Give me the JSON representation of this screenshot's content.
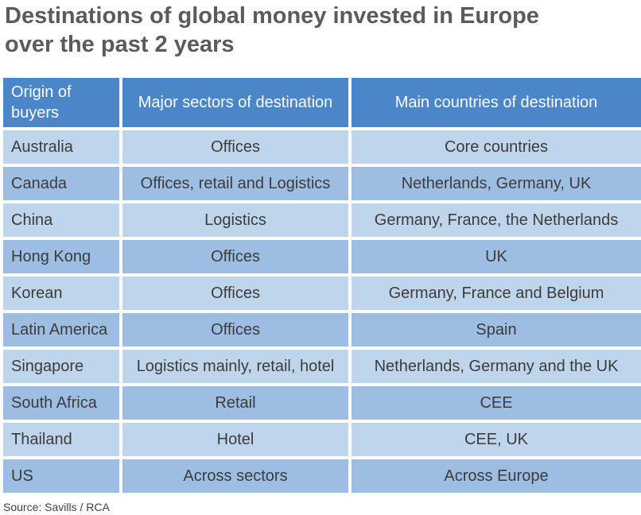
{
  "chart_data": {
    "type": "table",
    "title_lines": [
      "Destinations of global money invested in Europe",
      "over the past 2 years"
    ],
    "columns": [
      "Origin of buyers",
      "Major sectors of destination",
      "Main countries of destination"
    ],
    "rows": [
      [
        "Australia",
        "Offices",
        "Core countries"
      ],
      [
        "Canada",
        "Offices, retail and Logistics",
        "Netherlands, Germany, UK"
      ],
      [
        "China",
        "Logistics",
        "Germany, France, the Netherlands"
      ],
      [
        "Hong Kong",
        "Offices",
        "UK"
      ],
      [
        "Korean",
        "Offices",
        "Germany, France and Belgium"
      ],
      [
        "Latin America",
        "Offices",
        "Spain"
      ],
      [
        "Singapore",
        "Logistics mainly, retail, hotel",
        "Netherlands, Germany and the UK"
      ],
      [
        "South Africa",
        "Retail",
        "CEE"
      ],
      [
        "Thailand",
        "Hotel",
        "CEE, UK"
      ],
      [
        "US",
        "Across sectors",
        "Across Europe"
      ]
    ],
    "source": "Source: Savills / RCA"
  },
  "colors": {
    "header_bg": "#4a86c8",
    "row_light": "#bfd5ec",
    "row_dark": "#9dbde2",
    "title": "#5b5b5b"
  }
}
